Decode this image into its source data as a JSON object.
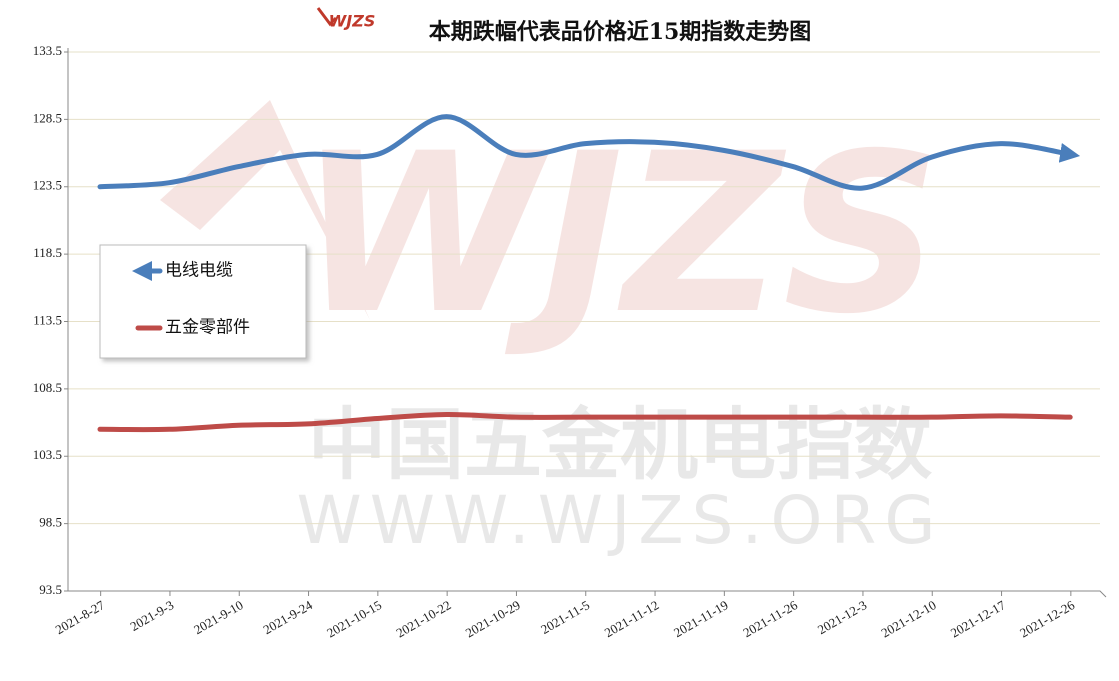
{
  "chart_data": {
    "type": "line",
    "title": "本期跌幅代表品价格近15期指数走势图",
    "logo": "WJZS",
    "watermark": [
      "中国五金机电指数",
      "WWW.WJZS.ORG"
    ],
    "categories": [
      "2021-8-27",
      "2021-9-3",
      "2021-9-10",
      "2021-9-24",
      "2021-10-15",
      "2021-10-22",
      "2021-10-29",
      "2021-11-5",
      "2021-11-12",
      "2021-11-19",
      "2021-11-26",
      "2021-12-3",
      "2021-12-10",
      "2021-12-17",
      "2021-12-26"
    ],
    "series": [
      {
        "name": "电线电缆",
        "color": "#4a7ebb",
        "values": [
          123.5,
          123.8,
          125.0,
          125.9,
          125.9,
          128.7,
          125.9,
          126.7,
          126.8,
          126.2,
          125.0,
          123.4,
          125.7,
          126.7,
          125.9
        ]
      },
      {
        "name": "五金零部件",
        "color": "#be4b48",
        "values": [
          105.5,
          105.5,
          105.8,
          105.9,
          106.3,
          106.6,
          106.4,
          106.4,
          106.4,
          106.4,
          106.4,
          106.4,
          106.4,
          106.5,
          106.4
        ]
      }
    ],
    "ylim": [
      93.5,
      133.5
    ],
    "yticks": [
      93.5,
      98.5,
      103.5,
      108.5,
      113.5,
      118.5,
      123.5,
      128.5,
      133.5
    ],
    "grid": true,
    "legend": "left"
  }
}
